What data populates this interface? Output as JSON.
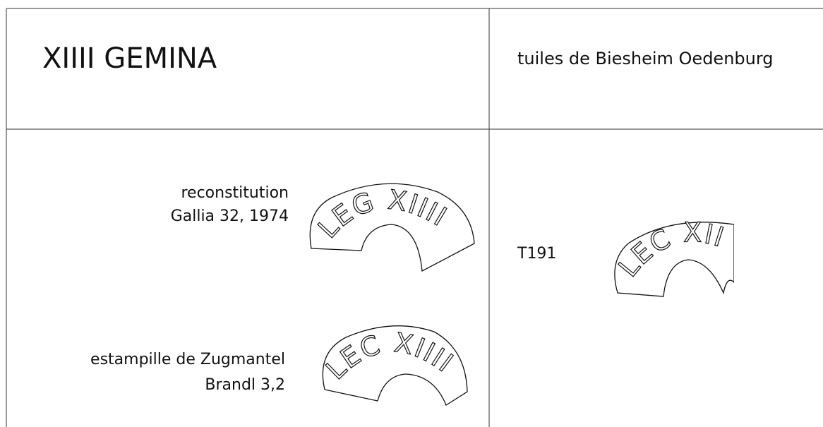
{
  "header": {
    "title": "XIIII GEMINA",
    "subtitle": "tuiles de Biesheim Oedenburg"
  },
  "left": {
    "items": [
      {
        "label_lines": [
          "reconstitution",
          "Gallia 32, 1974"
        ],
        "stamp": "LEG XIIII"
      },
      {
        "label_lines": [
          "estampille de Zugmantel",
          "Brandl 3,2"
        ],
        "stamp": "LEC XIIII"
      }
    ]
  },
  "right": {
    "items": [
      {
        "label": "T191",
        "stamp": "LEC XII"
      }
    ]
  }
}
